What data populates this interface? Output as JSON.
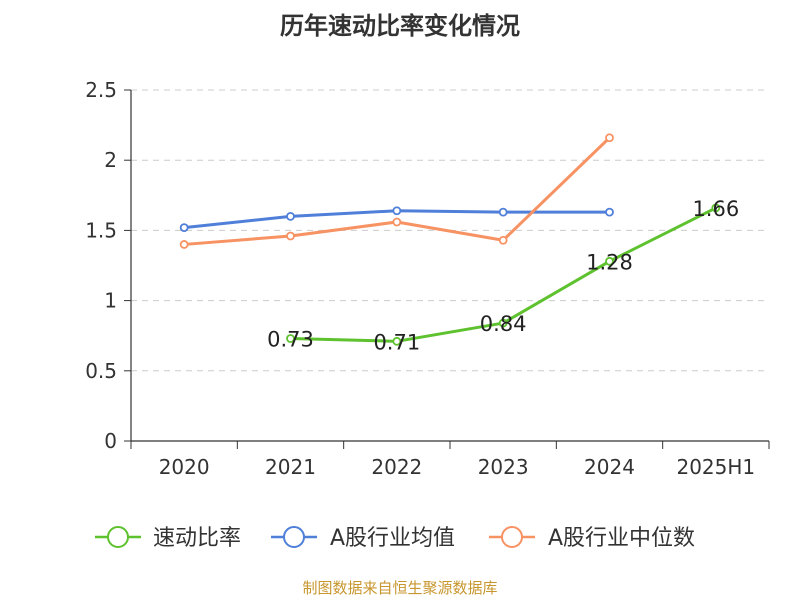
{
  "chart_data": {
    "type": "line",
    "title": "历年速动比率变化情况",
    "categories": [
      "2020",
      "2021",
      "2022",
      "2023",
      "2024",
      "2025H1"
    ],
    "ylim": [
      0,
      2.5
    ],
    "yticks": [
      0,
      0.5,
      1,
      1.5,
      2,
      2.5
    ],
    "ytick_labels": [
      "0",
      "0.5",
      "1",
      "1.5",
      "2",
      "2.5"
    ],
    "xlabel": "",
    "ylabel": "",
    "grid": true,
    "legend_position": "bottom",
    "series": [
      {
        "name": "速动比率",
        "color": "#5ec12e",
        "values": [
          null,
          0.73,
          0.71,
          0.84,
          1.28,
          1.66
        ],
        "labels": [
          "",
          "0.73",
          "0.71",
          "0.84",
          "1.28",
          "1.66"
        ]
      },
      {
        "name": "A股行业均值",
        "color": "#4f7fd9",
        "values": [
          1.52,
          1.6,
          1.64,
          1.63,
          1.63,
          null
        ]
      },
      {
        "name": "A股行业中位数",
        "color": "#f79263",
        "values": [
          1.4,
          1.46,
          1.56,
          1.43,
          2.16,
          null
        ]
      }
    ]
  },
  "footer": {
    "source": "制图数据来自恒生聚源数据库"
  }
}
